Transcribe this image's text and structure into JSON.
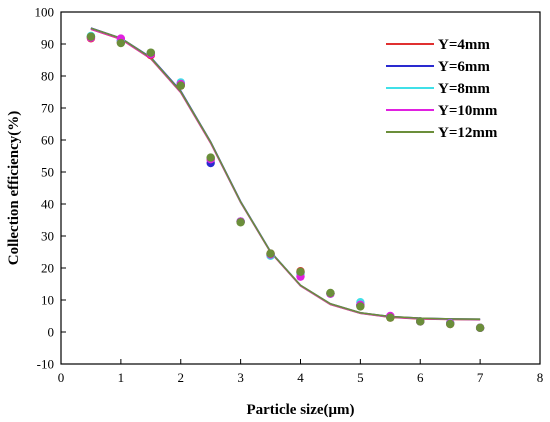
{
  "chart_data": {
    "type": "scatter",
    "xlabel": "Particle size(μm)",
    "ylabel": "Collection efficiency(%)",
    "xlim": [
      0,
      8
    ],
    "ylim": [
      -10,
      100
    ],
    "xticks": [
      0,
      1,
      2,
      3,
      4,
      5,
      6,
      7,
      8
    ],
    "yticks": [
      -10,
      0,
      10,
      20,
      30,
      40,
      50,
      60,
      70,
      80,
      90,
      100
    ],
    "grid": false,
    "legend_position": "top-right",
    "series": [
      {
        "name": "Y=4mm",
        "color": "#e03030",
        "points": [
          [
            0.5,
            91.8
          ],
          [
            1.0,
            90.5
          ],
          [
            1.5,
            86.5
          ],
          [
            2.0,
            77.0
          ],
          [
            2.5,
            54.0
          ],
          [
            3.0,
            34.5
          ],
          [
            3.5,
            24.5
          ],
          [
            4.0,
            19.0
          ],
          [
            4.5,
            12.0
          ],
          [
            5.0,
            8.5
          ],
          [
            5.5,
            4.5
          ],
          [
            6.0,
            3.3
          ],
          [
            6.5,
            2.5
          ],
          [
            7.0,
            1.3
          ]
        ],
        "fit": [
          [
            0.5,
            94.6
          ],
          [
            1.0,
            91.5
          ],
          [
            1.5,
            85.4
          ],
          [
            2.0,
            74.8
          ],
          [
            2.5,
            59.0
          ],
          [
            3.0,
            40.5
          ],
          [
            3.5,
            24.9
          ],
          [
            4.0,
            14.4
          ],
          [
            4.5,
            8.6
          ],
          [
            5.0,
            5.8
          ],
          [
            5.5,
            4.6
          ],
          [
            6.0,
            4.1
          ],
          [
            6.5,
            3.9
          ],
          [
            7.0,
            3.8
          ]
        ]
      },
      {
        "name": "Y=6mm",
        "color": "#2a2ad0",
        "points": [
          [
            0.5,
            92.2
          ],
          [
            1.0,
            91.0
          ],
          [
            1.5,
            87.0
          ],
          [
            2.0,
            77.5
          ],
          [
            2.5,
            52.8
          ],
          [
            3.0,
            34.5
          ],
          [
            3.5,
            24.0
          ],
          [
            4.0,
            18.5
          ],
          [
            4.5,
            12.0
          ],
          [
            5.0,
            8.3
          ],
          [
            5.5,
            4.8
          ],
          [
            6.0,
            3.3
          ],
          [
            6.5,
            2.8
          ],
          [
            7.0,
            1.3
          ]
        ],
        "fit": [
          [
            0.5,
            95.0
          ],
          [
            1.0,
            91.8
          ],
          [
            1.5,
            85.8
          ],
          [
            2.0,
            75.3
          ],
          [
            2.5,
            59.4
          ],
          [
            3.0,
            40.8
          ],
          [
            3.5,
            25.1
          ],
          [
            4.0,
            14.6
          ],
          [
            4.5,
            8.8
          ],
          [
            5.0,
            6.0
          ],
          [
            5.5,
            4.8
          ],
          [
            6.0,
            4.3
          ],
          [
            6.5,
            4.1
          ],
          [
            7.0,
            4.0
          ]
        ]
      },
      {
        "name": "Y=8mm",
        "color": "#40e0e8",
        "points": [
          [
            0.5,
            92.5
          ],
          [
            1.0,
            91.2
          ],
          [
            1.5,
            87.2
          ],
          [
            2.0,
            78.0
          ],
          [
            2.5,
            54.3
          ],
          [
            3.0,
            34.5
          ],
          [
            3.5,
            23.8
          ],
          [
            4.0,
            18.0
          ],
          [
            4.5,
            12.0
          ],
          [
            5.0,
            9.3
          ],
          [
            5.5,
            4.8
          ],
          [
            6.0,
            3.3
          ],
          [
            6.5,
            2.8
          ],
          [
            7.0,
            1.3
          ]
        ],
        "fit": [
          [
            0.5,
            94.8
          ],
          [
            1.0,
            91.7
          ],
          [
            1.5,
            85.6
          ],
          [
            2.0,
            75.0
          ],
          [
            2.5,
            59.2
          ],
          [
            3.0,
            40.6
          ],
          [
            3.5,
            25.0
          ],
          [
            4.0,
            14.5
          ],
          [
            4.5,
            8.7
          ],
          [
            5.0,
            5.9
          ],
          [
            5.5,
            4.7
          ],
          [
            6.0,
            4.2
          ],
          [
            6.5,
            4.0
          ],
          [
            7.0,
            3.9
          ]
        ]
      },
      {
        "name": "Y=10mm",
        "color": "#e020e0",
        "points": [
          [
            0.5,
            92.0
          ],
          [
            1.0,
            91.7
          ],
          [
            1.5,
            86.8
          ],
          [
            2.0,
            77.5
          ],
          [
            2.5,
            54.0
          ],
          [
            3.0,
            34.5
          ],
          [
            3.5,
            24.2
          ],
          [
            4.0,
            17.3
          ],
          [
            4.5,
            12.0
          ],
          [
            5.0,
            8.5
          ],
          [
            5.5,
            5.0
          ],
          [
            6.0,
            3.3
          ],
          [
            6.5,
            2.7
          ],
          [
            7.0,
            1.3
          ]
        ],
        "fit": [
          [
            0.5,
            94.7
          ],
          [
            1.0,
            91.6
          ],
          [
            1.5,
            85.5
          ],
          [
            2.0,
            74.9
          ],
          [
            2.5,
            59.1
          ],
          [
            3.0,
            40.6
          ],
          [
            3.5,
            24.9
          ],
          [
            4.0,
            14.5
          ],
          [
            4.5,
            8.7
          ],
          [
            5.0,
            5.9
          ],
          [
            5.5,
            4.7
          ],
          [
            6.0,
            4.2
          ],
          [
            6.5,
            4.0
          ],
          [
            7.0,
            3.9
          ]
        ]
      },
      {
        "name": "Y=12mm",
        "color": "#6b8e3a",
        "points": [
          [
            0.5,
            92.3
          ],
          [
            1.0,
            90.3
          ],
          [
            1.5,
            87.3
          ],
          [
            2.0,
            77.0
          ],
          [
            2.5,
            54.5
          ],
          [
            3.0,
            34.3
          ],
          [
            3.5,
            24.5
          ],
          [
            4.0,
            18.8
          ],
          [
            4.5,
            12.2
          ],
          [
            5.0,
            8.0
          ],
          [
            5.5,
            4.5
          ],
          [
            6.0,
            3.3
          ],
          [
            6.5,
            2.5
          ],
          [
            7.0,
            1.3
          ]
        ],
        "fit": [
          [
            0.5,
            94.9
          ],
          [
            1.0,
            91.8
          ],
          [
            1.5,
            85.7
          ],
          [
            2.0,
            75.1
          ],
          [
            2.5,
            59.3
          ],
          [
            3.0,
            40.7
          ],
          [
            3.5,
            25.0
          ],
          [
            4.0,
            14.6
          ],
          [
            4.5,
            8.8
          ],
          [
            5.0,
            6.0
          ],
          [
            5.5,
            4.8
          ],
          [
            6.0,
            4.3
          ],
          [
            6.5,
            4.1
          ],
          [
            7.0,
            4.0
          ]
        ]
      }
    ]
  }
}
